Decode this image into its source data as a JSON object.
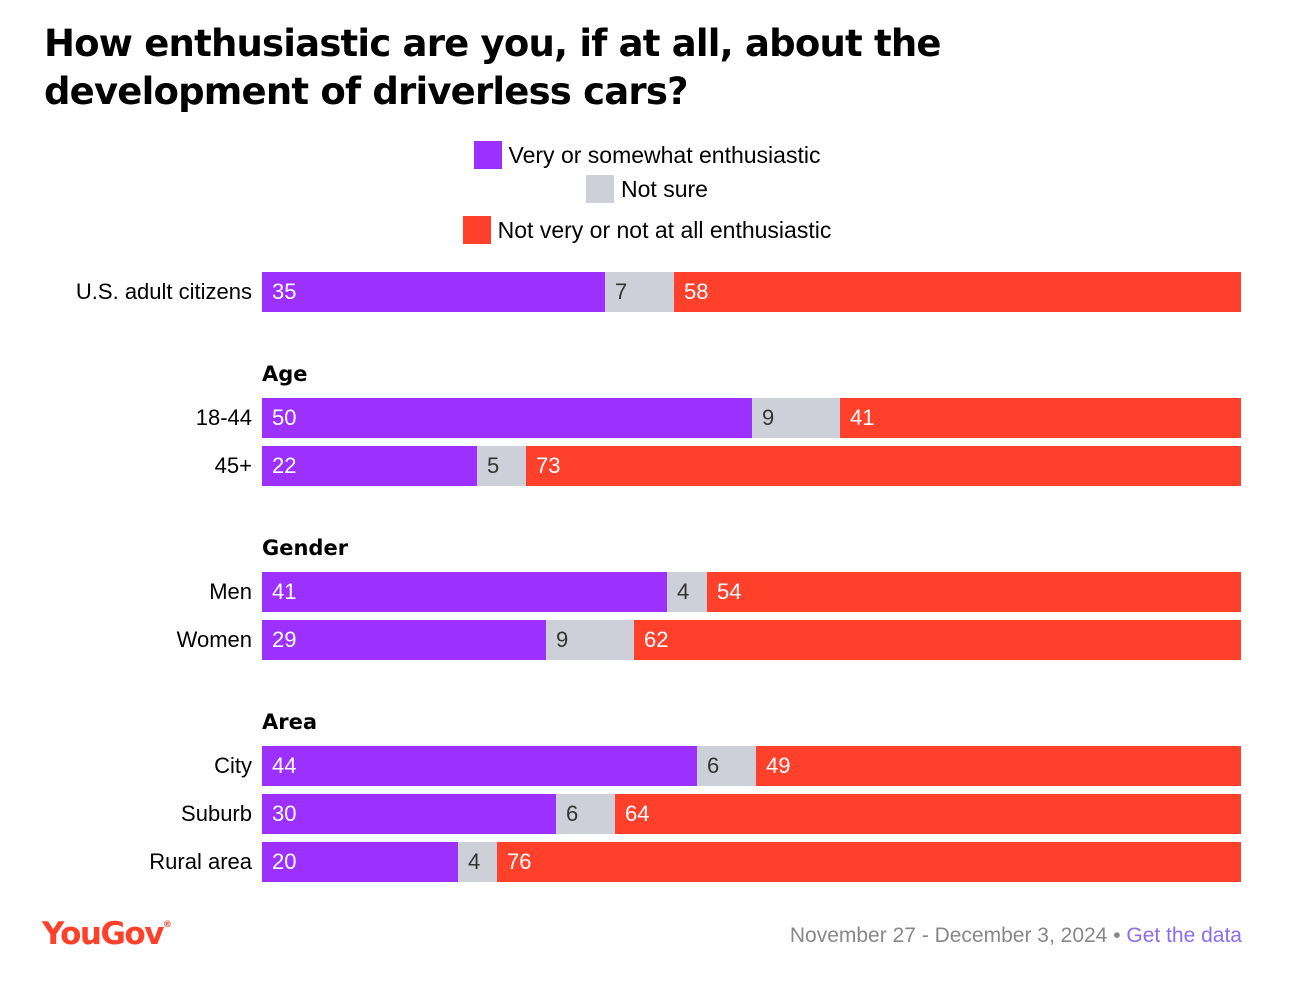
{
  "title": "How enthusiastic are you, if at all, about the development of driverless cars?",
  "colors": {
    "positive": "#9b30ff",
    "not_sure": "#cdd0d8",
    "negative": "#ff412c",
    "brand": "#ff412c",
    "link": "#8e6cf0"
  },
  "chart_data": {
    "type": "bar",
    "orientation": "horizontal-stacked-100",
    "title": "How enthusiastic are you, if at all, about the development of driverless cars?",
    "legend_position": "top-center",
    "series": [
      {
        "name": "Very or somewhat enthusiastic",
        "color": "#9b30ff"
      },
      {
        "name": "Not sure",
        "color": "#cdd0d8"
      },
      {
        "name": "Not very or not at all enthusiastic",
        "color": "#ff412c"
      }
    ],
    "groups": [
      {
        "heading": "",
        "rows": [
          {
            "label": "U.S. adult citizens",
            "values": [
              35,
              7,
              58
            ]
          }
        ]
      },
      {
        "heading": "Age",
        "rows": [
          {
            "label": "18-44",
            "values": [
              50,
              9,
              41
            ]
          },
          {
            "label": "45+",
            "values": [
              22,
              5,
              73
            ]
          }
        ]
      },
      {
        "heading": "Gender",
        "rows": [
          {
            "label": "Men",
            "values": [
              41,
              4,
              54
            ]
          },
          {
            "label": "Women",
            "values": [
              29,
              9,
              62
            ]
          }
        ]
      },
      {
        "heading": "Area",
        "rows": [
          {
            "label": "City",
            "values": [
              44,
              6,
              49
            ]
          },
          {
            "label": "Suburb",
            "values": [
              30,
              6,
              64
            ]
          },
          {
            "label": "Rural area",
            "values": [
              20,
              4,
              76
            ]
          }
        ]
      }
    ]
  },
  "footer": {
    "logo_text": "YouGov",
    "logo_mark": "®",
    "date": "November 27 - December 3, 2024",
    "separator": "•",
    "link_label": "Get the data"
  }
}
